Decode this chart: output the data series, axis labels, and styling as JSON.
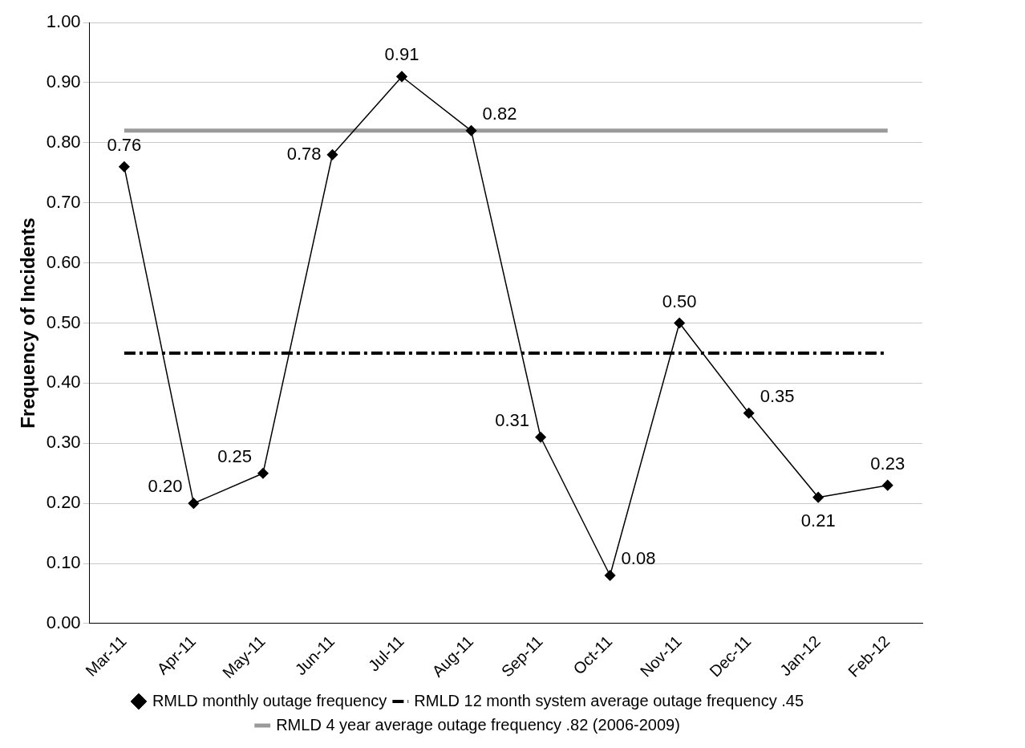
{
  "chart_data": {
    "type": "line",
    "ylabel": "Frequency of Incidents",
    "categories": [
      "Mar-11",
      "Apr-11",
      "May-11",
      "Jun-11",
      "Jul-11",
      "Aug-11",
      "Sep-11",
      "Oct-11",
      "Nov-11",
      "Dec-11",
      "Jan-12",
      "Feb-12"
    ],
    "series": [
      {
        "name": "RMLD monthly outage frequency",
        "color": "#000000",
        "marker": "diamond",
        "line_style": "solid",
        "values": [
          0.76,
          0.2,
          0.25,
          0.78,
          0.91,
          0.82,
          0.31,
          0.08,
          0.5,
          0.35,
          0.21,
          0.23
        ],
        "value_labels": [
          "0.76",
          "0.20",
          "0.25",
          "0.78",
          "0.91",
          "0.82",
          "0.31",
          "0.08",
          "0.50",
          "0.35",
          "0.21",
          "0.23"
        ]
      },
      {
        "name": "RMLD 12 month system average outage frequency .45",
        "color": "#000000",
        "marker": "none",
        "line_style": "dashed",
        "values": [
          0.45,
          0.45,
          0.45,
          0.45,
          0.45,
          0.45,
          0.45,
          0.45,
          0.45,
          0.45,
          0.45,
          0.45
        ]
      },
      {
        "name": "RMLD 4 year average outage frequency .82 (2006-2009)",
        "color": "#9a9a9a",
        "marker": "none",
        "line_style": "solid",
        "values": [
          0.82,
          0.82,
          0.82,
          0.82,
          0.82,
          0.82,
          0.82,
          0.82,
          0.82,
          0.82,
          0.82,
          0.82
        ]
      }
    ],
    "ylim": [
      0,
      1
    ],
    "yticks": [
      {
        "value": 0,
        "label": "0.00"
      },
      {
        "value": 0.1,
        "label": "0.10"
      },
      {
        "value": 0.2,
        "label": "0.20"
      },
      {
        "value": 0.3,
        "label": "0.30"
      },
      {
        "value": 0.4,
        "label": "0.40"
      },
      {
        "value": 0.5,
        "label": "0.50"
      },
      {
        "value": 0.6,
        "label": "0.60"
      },
      {
        "value": 0.7,
        "label": "0.70"
      },
      {
        "value": 0.8,
        "label": "0.80"
      },
      {
        "value": 0.9,
        "label": "0.90"
      },
      {
        "value": 1,
        "label": "1.00"
      }
    ],
    "grid": "y",
    "legend": "bottom"
  }
}
